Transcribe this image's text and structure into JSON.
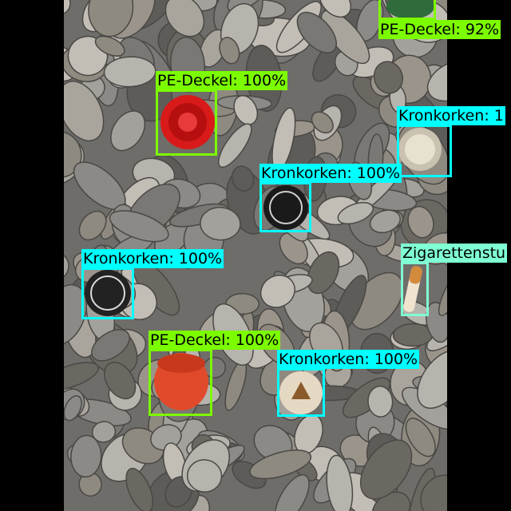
{
  "colors": {
    "pe_deckel": "#7CFC00",
    "kronkorken": "#00FFFF",
    "zigarettenstummel": "#7FFFD4",
    "background": "#000000"
  },
  "detections": [
    {
      "label": "PE-Deckel: 92%"
    },
    {
      "label": "PE-Deckel: 100%"
    },
    {
      "label": "Kronkorken: 1"
    },
    {
      "label": "Kronkorken: 100%"
    },
    {
      "label": "Zigarettenstu"
    },
    {
      "label": "Kronkorken: 100%"
    },
    {
      "label": "PE-Deckel: 100%"
    },
    {
      "label": "Kronkorken: 100%"
    }
  ]
}
